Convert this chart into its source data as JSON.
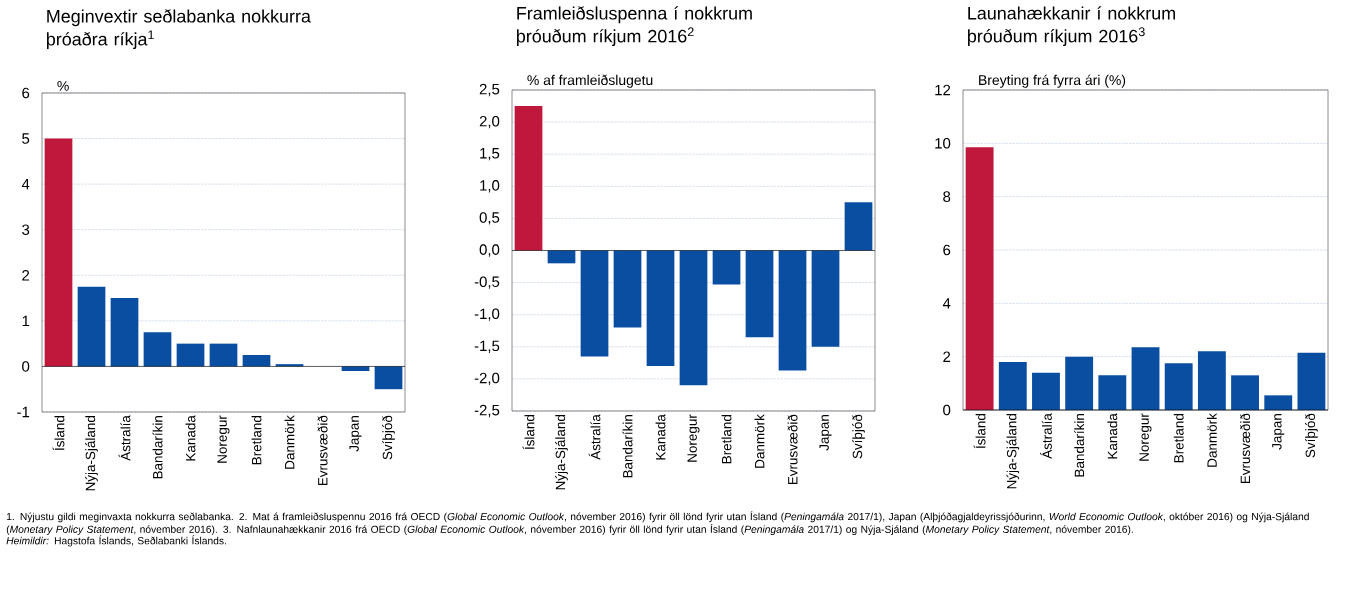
{
  "chart_data": [
    {
      "type": "bar",
      "title": "Meginvextir seðlabanka nokkurra þróaðra ríkja$^{1}$",
      "ylabel": "%",
      "categories": [
        "Ísland",
        "Nýja-Sjáland",
        "Ástralía",
        "Bandaríkin",
        "Kanada",
        "Noregur",
        "Bretland",
        "Danmörk",
        "Evrusvæðið",
        "Japan",
        "Svíþjóð"
      ],
      "values": [
        5,
        1.75,
        1.5,
        0.75,
        0.5,
        0.5,
        0.25,
        0.05,
        0,
        -0.1,
        -0.5
      ],
      "colors": [
        "#c0183c",
        "#0a4ea2",
        "#0a4ea2",
        "#0a4ea2",
        "#0a4ea2",
        "#0a4ea2",
        "#0a4ea2",
        "#0a4ea2",
        "#0a4ea2",
        "#0a4ea2",
        "#0a4ea2"
      ],
      "ylim": [
        -1,
        6
      ],
      "yticks": [
        -1,
        0,
        1,
        2,
        3,
        4,
        5,
        6
      ],
      "grid": "y",
      "annotations": [
        "1. Nýjustu gildi meginvaxta nokkurra seðlabanka. 2. Mat á framleiðsluspennu 2016 frá OECD (*Global Economic Outlook*, nóvember 2016) fyrir öll lönd fyrir utan Ísland (*Peningamála* 2017/1), Japan (Alþjóðagjaldeyrissjóðurinn, *World Economic Outlook*, október 2016) og Nýja-Sjáland (*Monetary Policy Statement*, nóvember 2016). 3. Nafnlaunahækkanir 2016 frá OECD (*Global Economic Outlook*, nóvember 2016) fyrir öll lönd fyrir utan Ísland (*Peningamála* 2017/1) og Nýja-Sjáland (*Monetary Policy Statement*, nóvember 2016).",
        "*Heimildir:* Hagstofa Íslands, Seðlabanki Íslands."
      ]
    },
    {
      "type": "bar",
      "title": "Framleiðsluspenna í nokkrum þróuðum ríkjum 2016$^{2}$",
      "ylabel": "% af framleiðslugetu",
      "categories": [
        "Ísland",
        "Nýja-Sjáland",
        "Ástralía",
        "Bandaríkin",
        "Kanada",
        "Noregur",
        "Bretland",
        "Danmörk",
        "Evrusvæðið",
        "Japan",
        "Svíþjóð"
      ],
      "values": [
        2.25,
        -0.2,
        -1.65,
        -1.2,
        -1.8,
        -2.1,
        -0.53,
        -1.35,
        -1.87,
        -1.5,
        0.75
      ],
      "colors": [
        "#c0183c",
        "#0a4ea2",
        "#0a4ea2",
        "#0a4ea2",
        "#0a4ea2",
        "#0a4ea2",
        "#0a4ea2",
        "#0a4ea2",
        "#0a4ea2",
        "#0a4ea2",
        "#0a4ea2"
      ],
      "ylim": [
        -2.5,
        2.5
      ],
      "yticks": [
        {
          "value": -2.5,
          "label": "-2,5"
        },
        {
          "value": -2,
          "label": "-2,0"
        },
        {
          "value": -1.5,
          "label": "-1,5"
        },
        {
          "value": -1,
          "label": "-1,0"
        },
        {
          "value": -0.5,
          "label": "-0,5"
        },
        {
          "value": 0,
          "label": "0,0"
        },
        {
          "value": 0.5,
          "label": "0,5"
        },
        {
          "value": 1,
          "label": "1,0"
        },
        {
          "value": 1.5,
          "label": "1,5"
        },
        {
          "value": 2,
          "label": "2,0"
        },
        {
          "value": 2.5,
          "label": "2,5"
        }
      ],
      "grid": "y"
    },
    {
      "type": "bar",
      "title": "Launahækkanir í nokkrum þróuðum ríkjum 2016$^{3}$",
      "ylabel": "Breyting frá fyrra ári (%)",
      "categories": [
        "Ísland",
        "Nýja-Sjáland",
        "Ástralía",
        "Bandaríkin",
        "Kanada",
        "Noregur",
        "Bretland",
        "Danmörk",
        "Evrusvæðið",
        "Japan",
        "Svíþjóð"
      ],
      "values": [
        9.85,
        1.8,
        1.4,
        2.0,
        1.3,
        2.35,
        1.75,
        2.2,
        1.3,
        0.55,
        2.15
      ],
      "colors": [
        "#c0183c",
        "#0a4ea2",
        "#0a4ea2",
        "#0a4ea2",
        "#0a4ea2",
        "#0a4ea2",
        "#0a4ea2",
        "#0a4ea2",
        "#0a4ea2",
        "#0a4ea2",
        "#0a4ea2"
      ],
      "ylim": [
        0,
        12
      ],
      "yticks": [
        0,
        2,
        4,
        6,
        8,
        10,
        12
      ],
      "grid": "y"
    }
  ]
}
